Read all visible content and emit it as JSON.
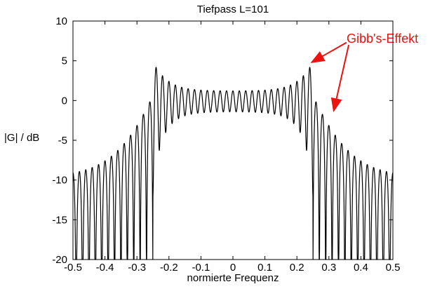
{
  "chart_data": {
    "type": "line",
    "title": "Tiefpass L=101",
    "xlabel": "normierte Frequenz",
    "ylabel": "|G| / dB",
    "xlim": [
      -0.5,
      0.5
    ],
    "ylim": [
      -20,
      10
    ],
    "xtick_labels": [
      "-0.5",
      "-0.4",
      "-0.3",
      "-0.2",
      "-0.1",
      "0",
      "0.1",
      "0.2",
      "0.3",
      "0.4",
      "0.5"
    ],
    "ytick_labels": [
      "10",
      "5",
      "0",
      "-5",
      "-10",
      "-15",
      "-20"
    ],
    "grid": false,
    "legend": "none",
    "line_color": "#000000",
    "series_model": {
      "description": "Magnitude response in dB of a length-101 FIR lowpass (truncated ideal response) showing Gibbs ripple; passband |f|<0.25 ripples around 0 dB with overshoot ~+4.8 dB at band edge, stopband lobes decay toward -9 dB with nulls clipped at -20 dB",
      "filter_length": 101,
      "cutoff": 0.25,
      "ripple_cycles_per_unit": 50,
      "passband_ripple_base": 0.15,
      "passband_ripple_edge": 0.6,
      "passband_ripple_decay": 0.04,
      "stopband_env_a": 0.75,
      "stopband_env_decay": 0.07,
      "stopband_env_floor": 0.33,
      "db_floor": -20,
      "samples": 2400
    },
    "annotation": {
      "label": "Gibb's-Effekt",
      "color": "#ee1111",
      "arrows": [
        {
          "from_x": 0.355,
          "from_y": 7.3,
          "to_x": 0.246,
          "to_y": 4.8
        },
        {
          "from_x": 0.362,
          "from_y": 7.0,
          "to_x": 0.315,
          "to_y": -1.3
        }
      ]
    }
  }
}
